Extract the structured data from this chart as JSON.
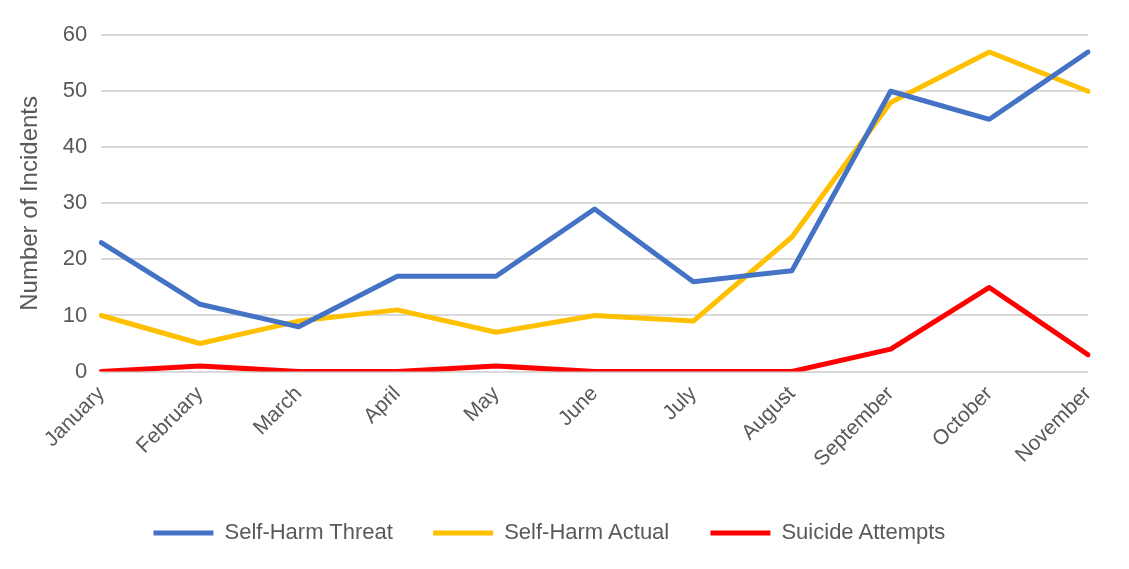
{
  "chart_data": {
    "type": "line",
    "ylabel": "Number of Incidents",
    "categories": [
      "January",
      "February",
      "March",
      "April",
      "May",
      "June",
      "July",
      "August",
      "September",
      "October",
      "November"
    ],
    "series": [
      {
        "name": "Self-Harm Threat",
        "color": "#4472c4",
        "values": [
          23,
          12,
          8,
          17,
          17,
          29,
          16,
          18,
          50,
          45,
          57
        ]
      },
      {
        "name": "Self-Harm Actual",
        "color": "#ffc000",
        "values": [
          10,
          5,
          9,
          11,
          7,
          10,
          9,
          24,
          48,
          57,
          50
        ]
      },
      {
        "name": "Suicide Attempts",
        "color": "#ff0000",
        "values": [
          0,
          1,
          0,
          0,
          1,
          0,
          0,
          0,
          4,
          15,
          3
        ]
      }
    ],
    "ylim": [
      0,
      60
    ],
    "yticks": [
      0,
      10,
      20,
      30,
      40,
      50,
      60
    ],
    "grid": "y",
    "legend": "bottom",
    "marker": "none",
    "line_style": "solid"
  }
}
